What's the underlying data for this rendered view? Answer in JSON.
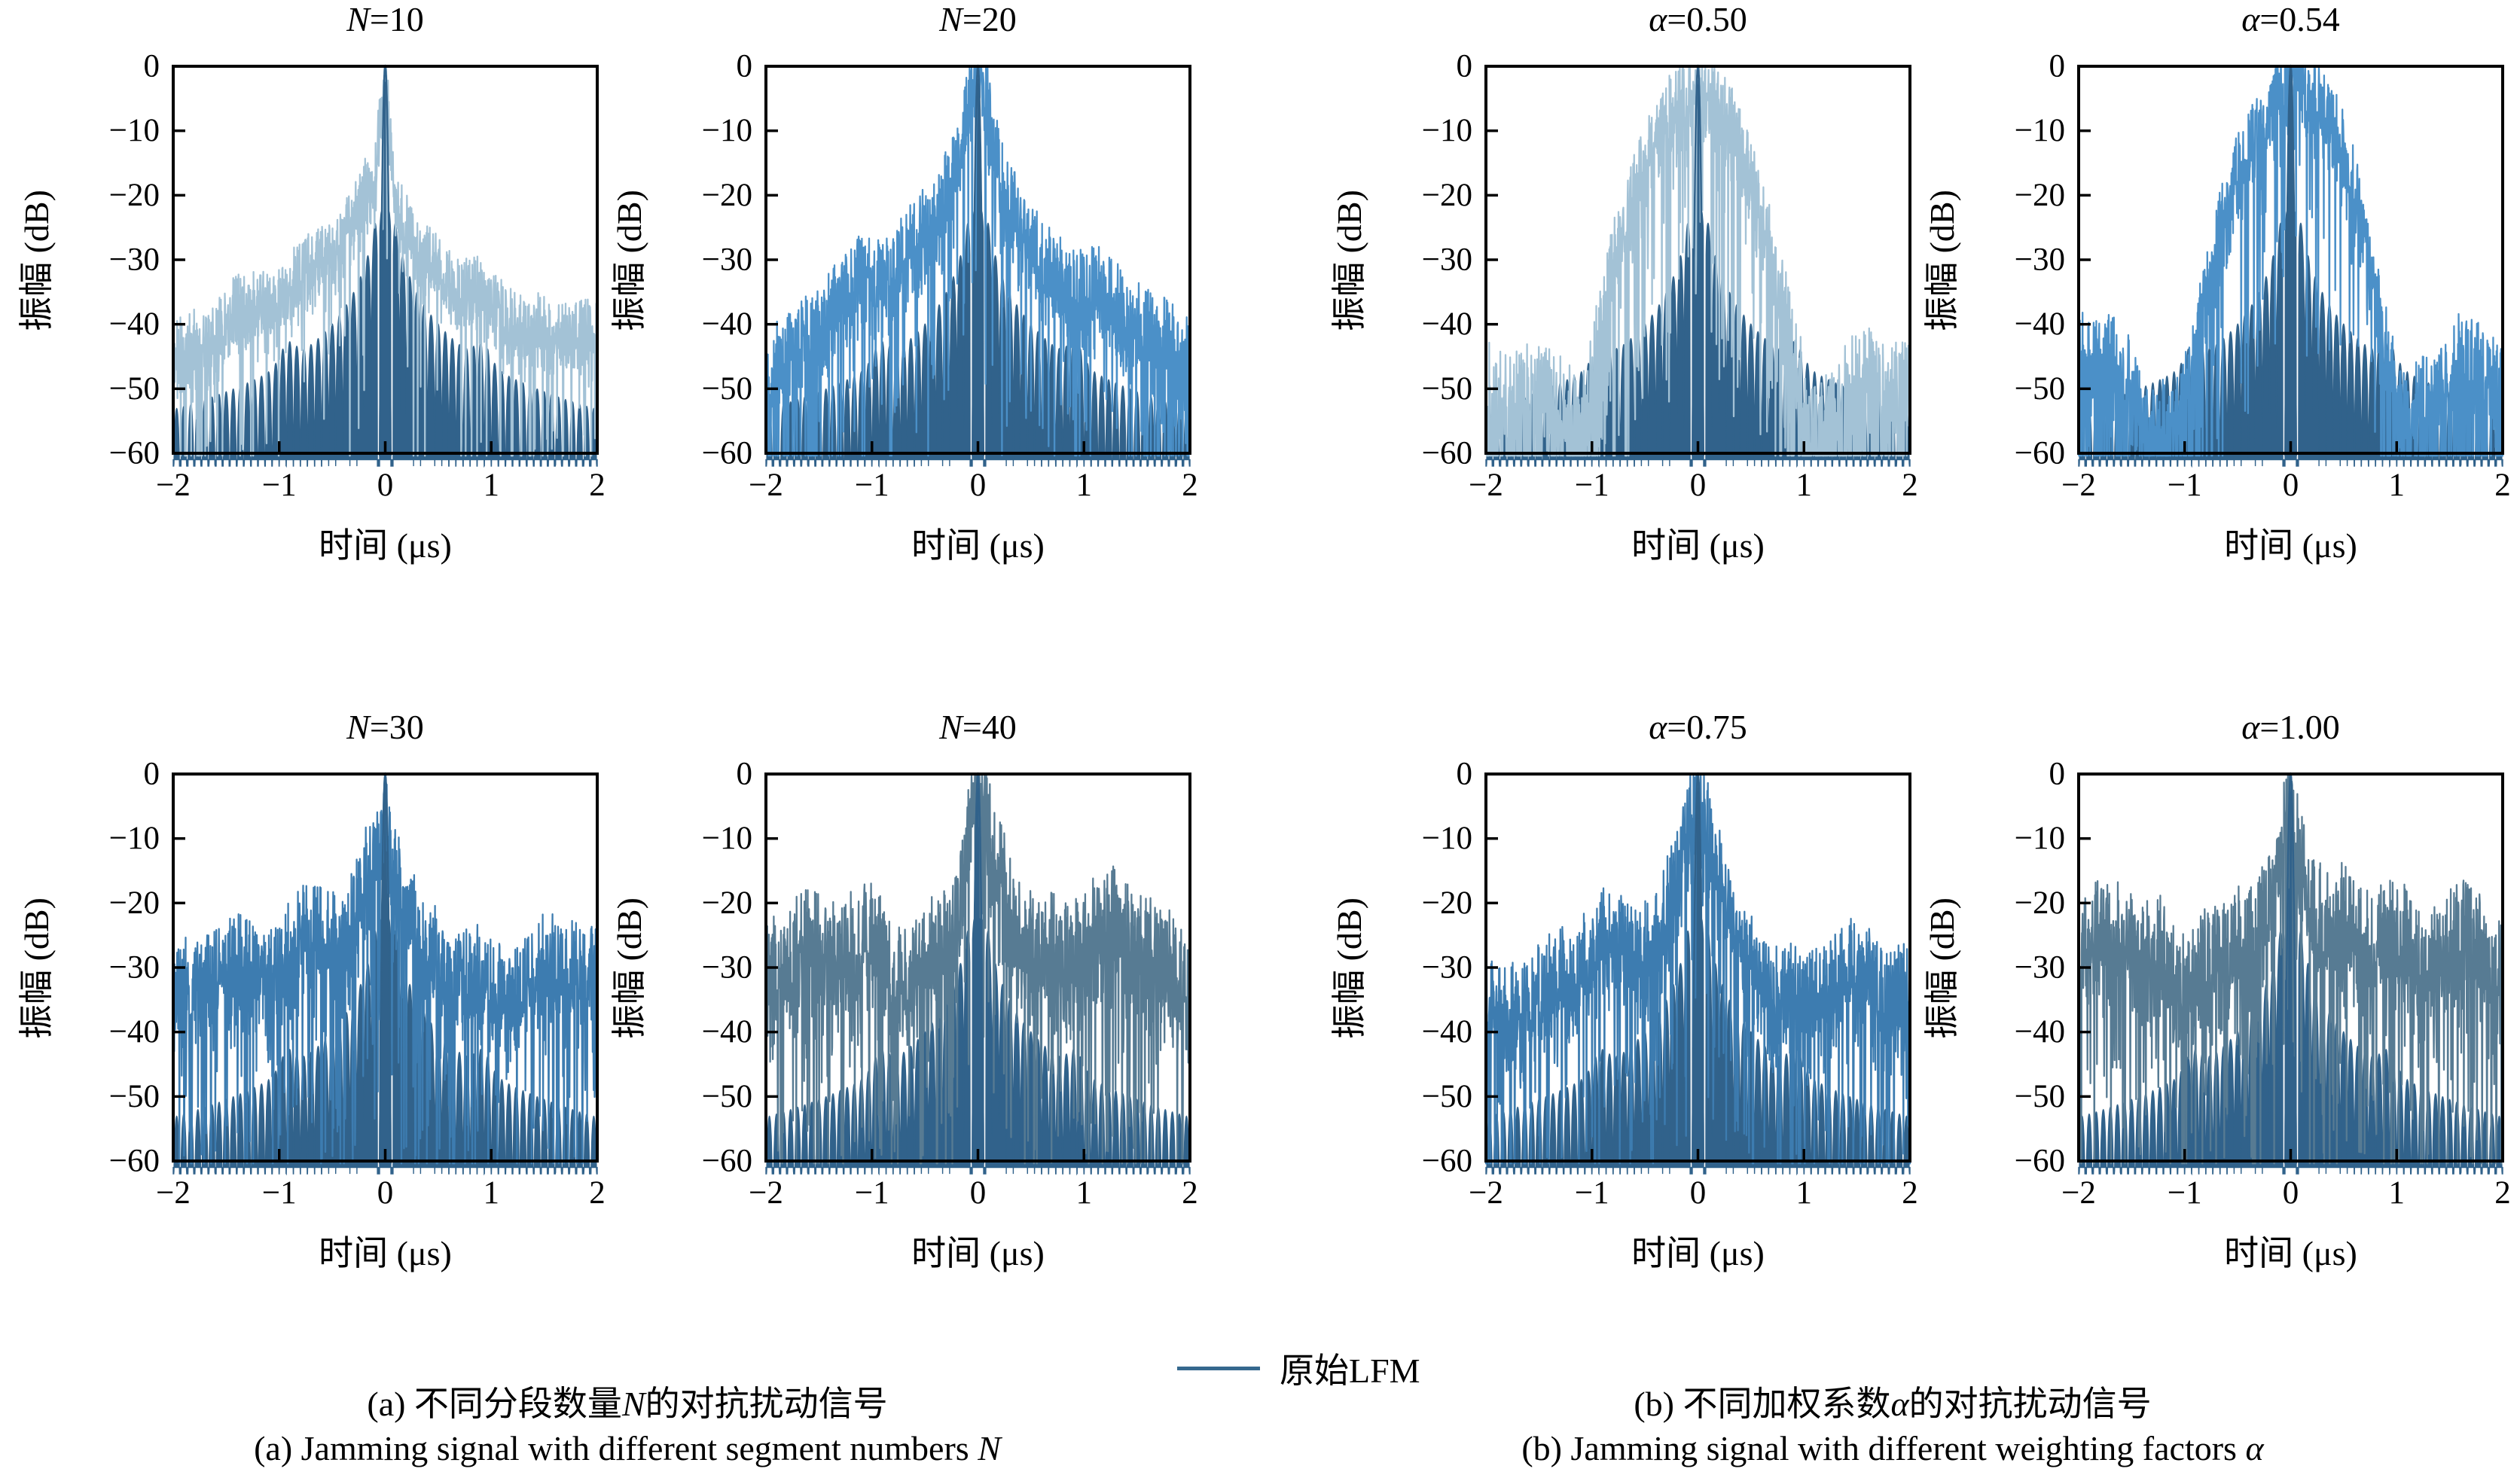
{
  "figure": {
    "legend": {
      "label": "原始LFM",
      "line_color": "#35688e"
    },
    "captions": {
      "a_zh": "(a) 不同分段数量N的对抗扰动信号",
      "a_zh_runs": [
        {
          "t": "(a) 不同分段数量"
        },
        {
          "t": "N",
          "i": true
        },
        {
          "t": "的对抗扰动信号"
        }
      ],
      "a_en": "(a) Jamming signal with different segment numbers N",
      "a_en_runs": [
        {
          "t": "(a) Jamming signal with different segment numbers "
        },
        {
          "t": "N",
          "i": true
        }
      ],
      "b_zh": "(b) 不同加权系数α的对抗扰动信号",
      "b_zh_runs": [
        {
          "t": "(b) 不同加权系数"
        },
        {
          "t": "α",
          "i": true
        },
        {
          "t": "的对抗扰动信号"
        }
      ],
      "b_en": "(b) Jamming signal with different weighting factors α",
      "b_en_runs": [
        {
          "t": "(b) Jamming signal with different weighting factors "
        },
        {
          "t": "α",
          "i": true
        }
      ]
    }
  },
  "chart_data": {
    "type": "line",
    "xlabel": "时间 (μs)",
    "ylabel": "振幅 (dB)",
    "xlim": [
      -2,
      2
    ],
    "ylim": [
      -60,
      0
    ],
    "xticks": [
      -2,
      -1,
      0,
      1,
      2
    ],
    "yticks": [
      0,
      -10,
      -20,
      -30,
      -40,
      -50,
      -60
    ],
    "grid": false,
    "legend_position": "bottom-center",
    "base_series": {
      "name": "原始LFM",
      "color": "#35688e",
      "fill_color": "#31628b",
      "peak_db": 0,
      "model": {
        "start_db": -22,
        "ref_t": 0.08,
        "slope_db_per_decade": 22,
        "bump_t": 0.92,
        "bump_db": 3,
        "bump_w": 0.1,
        "lobe_period": 0.0667,
        "mainlobe_halfwidth": 0.012,
        "slot": [
          0.052,
          0.075
        ],
        "floor_db": -60
      }
    },
    "plots": [
      {
        "param": "N",
        "value": 10,
        "group": "a",
        "row": 0,
        "col": 0,
        "title": "N=10",
        "title_runs": [
          {
            "t": "N",
            "i": true
          },
          {
            "t": "=10"
          }
        ],
        "jam_color": "#a3c2d6",
        "seed": 11,
        "noise_db": 5,
        "zig": 5,
        "slow": 3,
        "dip_prob": 0.05,
        "envelope_db": [
          [
            0,
            0
          ],
          [
            0.03,
            -6
          ],
          [
            0.1,
            -18
          ],
          [
            0.3,
            -26
          ],
          [
            0.6,
            -31
          ],
          [
            1.0,
            -36
          ],
          [
            1.5,
            -40
          ],
          [
            2.0,
            -43
          ]
        ]
      },
      {
        "param": "N",
        "value": 20,
        "group": "a",
        "row": 0,
        "col": 1,
        "title": "N=20",
        "title_runs": [
          {
            "t": "N",
            "i": true
          },
          {
            "t": "=20"
          }
        ],
        "jam_color": "#4b90c8",
        "seed": 22,
        "noise_db": 6,
        "zig": 7,
        "slow": 3,
        "dip_prob": 0.09,
        "envelope_db": [
          [
            0,
            0
          ],
          [
            0.05,
            -3
          ],
          [
            0.12,
            -8
          ],
          [
            0.25,
            -16
          ],
          [
            0.5,
            -25
          ],
          [
            1.0,
            -34
          ],
          [
            1.5,
            -40
          ],
          [
            2.0,
            -45
          ]
        ]
      },
      {
        "param": "N",
        "value": 30,
        "group": "a",
        "row": 1,
        "col": 0,
        "title": "N=30",
        "title_runs": [
          {
            "t": "N",
            "i": true
          },
          {
            "t": "=30"
          }
        ],
        "jam_color": "#3d7cb0",
        "seed": 33,
        "noise_db": 7,
        "zig": 8,
        "slow": 4.5,
        "dip_prob": 0.12,
        "envelope_db": [
          [
            0,
            0
          ],
          [
            0.05,
            -5
          ],
          [
            0.15,
            -14
          ],
          [
            0.35,
            -25
          ],
          [
            0.7,
            -29
          ],
          [
            1.2,
            -30
          ],
          [
            1.6,
            -31
          ],
          [
            2.0,
            -34
          ]
        ]
      },
      {
        "param": "N",
        "value": 40,
        "group": "a",
        "row": 1,
        "col": 1,
        "title": "N=40",
        "title_runs": [
          {
            "t": "N",
            "i": true
          },
          {
            "t": "=40"
          }
        ],
        "jam_color": "#577b93",
        "seed": 44,
        "noise_db": 8,
        "zig": 9,
        "slow": 5,
        "dip_prob": 0.12,
        "envelope_db": [
          [
            0,
            0
          ],
          [
            0.05,
            -4
          ],
          [
            0.15,
            -12
          ],
          [
            0.35,
            -22
          ],
          [
            0.7,
            -27
          ],
          [
            1.2,
            -28
          ],
          [
            1.6,
            -28
          ],
          [
            2.0,
            -31
          ]
        ]
      },
      {
        "param": "α",
        "value": 0.5,
        "group": "b",
        "row": 0,
        "col": 2,
        "title": "α=0.50",
        "title_runs": [
          {
            "t": "α",
            "i": true
          },
          {
            "t": "=0.50"
          }
        ],
        "jam_color": "#a3c2d6",
        "seed": 55,
        "noise_db": 6,
        "zig": 6,
        "slow": 3,
        "dip_prob": 0.15,
        "envelope_db": [
          [
            0,
            -1
          ],
          [
            0.25,
            -8
          ],
          [
            0.5,
            -16
          ],
          [
            0.7,
            -27
          ],
          [
            0.9,
            -40
          ],
          [
            1.05,
            -52
          ],
          [
            1.3,
            -50
          ],
          [
            1.6,
            -47
          ],
          [
            1.85,
            -50
          ],
          [
            2.0,
            -48
          ]
        ]
      },
      {
        "param": "α",
        "value": 0.54,
        "group": "b",
        "row": 0,
        "col": 3,
        "title": "α=0.54",
        "title_runs": [
          {
            "t": "α",
            "i": true
          },
          {
            "t": "=0.54"
          }
        ],
        "jam_color": "#4b90c8",
        "seed": 66,
        "noise_db": 6,
        "zig": 6,
        "slow": 3,
        "dip_prob": 0.12,
        "envelope_db": [
          [
            0,
            0
          ],
          [
            0.2,
            -6
          ],
          [
            0.45,
            -13
          ],
          [
            0.65,
            -24
          ],
          [
            0.85,
            -38
          ],
          [
            1.05,
            -53
          ],
          [
            1.35,
            -50
          ],
          [
            1.6,
            -43
          ],
          [
            1.8,
            -45
          ],
          [
            2.0,
            -44
          ]
        ]
      },
      {
        "param": "α",
        "value": 0.75,
        "group": "b",
        "row": 1,
        "col": 2,
        "title": "α=0.75",
        "title_runs": [
          {
            "t": "α",
            "i": true
          },
          {
            "t": "=0.75"
          }
        ],
        "jam_color": "#3d7cb0",
        "seed": 77,
        "noise_db": 7,
        "zig": 8,
        "slow": 4.5,
        "dip_prob": 0.12,
        "envelope_db": [
          [
            0,
            0
          ],
          [
            0.05,
            -5
          ],
          [
            0.15,
            -14
          ],
          [
            0.35,
            -25
          ],
          [
            0.7,
            -29
          ],
          [
            1.2,
            -30
          ],
          [
            1.6,
            -31
          ],
          [
            2.0,
            -34
          ]
        ]
      },
      {
        "param": "α",
        "value": 1.0,
        "group": "b",
        "row": 1,
        "col": 3,
        "title": "α=1.00",
        "title_runs": [
          {
            "t": "α",
            "i": true
          },
          {
            "t": "=1.00"
          }
        ],
        "jam_color": "#577b93",
        "seed": 88,
        "noise_db": 8,
        "zig": 9,
        "slow": 5,
        "dip_prob": 0.12,
        "envelope_db": [
          [
            0,
            0
          ],
          [
            0.05,
            -4
          ],
          [
            0.15,
            -12
          ],
          [
            0.35,
            -22
          ],
          [
            0.7,
            -27
          ],
          [
            1.2,
            -28
          ],
          [
            1.6,
            -28
          ],
          [
            2.0,
            -31
          ]
        ]
      }
    ]
  },
  "layout_positions": {
    "col_lefts": [
      12,
      799,
      1755,
      2542
    ],
    "row_tops": [
      0,
      940
    ]
  }
}
